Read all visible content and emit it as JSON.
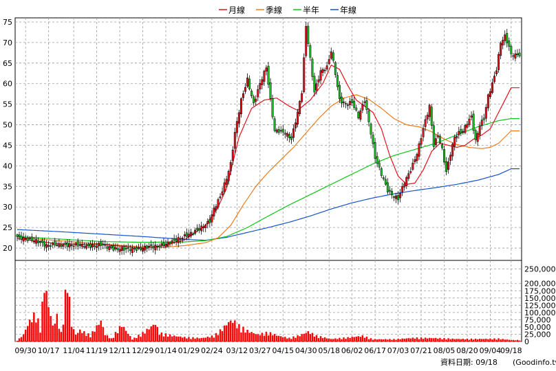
{
  "chart_data": {
    "type": "candlestick",
    "title": "",
    "legend": {
      "placement": "top-center",
      "entries": [
        {
          "name": "月線",
          "color": "#e8101b"
        },
        {
          "name": "季線",
          "color": "#ef7a1a"
        },
        {
          "name": "半年",
          "color": "#11c51c"
        },
        {
          "name": "年線",
          "color": "#1451cf"
        }
      ]
    },
    "price_axis": {
      "ylim": [
        17,
        76
      ],
      "ticks": [
        20,
        25,
        30,
        35,
        40,
        45,
        50,
        55,
        60,
        65,
        70,
        75
      ]
    },
    "volume_axis": {
      "ylim": [
        0,
        280000
      ],
      "ticks": [
        0,
        25000,
        50000,
        75000,
        100000,
        125000,
        150000,
        175000,
        200000,
        250000
      ],
      "tick_labels": [
        "0",
        "25,000",
        "50,000",
        "75,000",
        "100,000",
        "125,000",
        "150,000",
        "175,000",
        "200,000",
        "250,000"
      ]
    },
    "x_ticks": [
      {
        "label": "09/30",
        "day": 4
      },
      {
        "label": "10/17",
        "day": 15
      },
      {
        "label": "11/04",
        "day": 27
      },
      {
        "label": "11/19",
        "day": 38
      },
      {
        "label": "12/11",
        "day": 49
      },
      {
        "label": "12/29",
        "day": 60
      },
      {
        "label": "01/14",
        "day": 71
      },
      {
        "label": "01/29",
        "day": 82
      },
      {
        "label": "02/24",
        "day": 93
      },
      {
        "label": "03/12",
        "day": 105
      },
      {
        "label": "03/27",
        "day": 116
      },
      {
        "label": "04/15",
        "day": 127
      },
      {
        "label": "04/30",
        "day": 138
      },
      {
        "label": "05/18",
        "day": 149
      },
      {
        "label": "06/02",
        "day": 160
      },
      {
        "label": "06/17",
        "day": 171
      },
      {
        "label": "07/03",
        "day": 182
      },
      {
        "label": "07/21",
        "day": 193
      },
      {
        "label": "08/05",
        "day": 204
      },
      {
        "label": "08/20",
        "day": 215
      },
      {
        "label": "09/04",
        "day": 226
      },
      {
        "label": "09/18",
        "day": 236
      }
    ],
    "grid": true,
    "days": 241,
    "close_anchors": [
      [
        0,
        22.8
      ],
      [
        6,
        22
      ],
      [
        10,
        21.6
      ],
      [
        14,
        20.6
      ],
      [
        18,
        20.9
      ],
      [
        22,
        20.7
      ],
      [
        28,
        20.8
      ],
      [
        34,
        20.4
      ],
      [
        40,
        20.9
      ],
      [
        46,
        19.8
      ],
      [
        52,
        19.8
      ],
      [
        58,
        19.7
      ],
      [
        62,
        20.3
      ],
      [
        68,
        20.5
      ],
      [
        72,
        21.2
      ],
      [
        76,
        22.0
      ],
      [
        80,
        22.9
      ],
      [
        84,
        23.8
      ],
      [
        88,
        25.0
      ],
      [
        92,
        26.5
      ],
      [
        94,
        29.5
      ],
      [
        97,
        32.5
      ],
      [
        100,
        37.0
      ],
      [
        102,
        40.5
      ],
      [
        104,
        48.0
      ],
      [
        107,
        56.0
      ],
      [
        110,
        61.0
      ],
      [
        113,
        55.0
      ],
      [
        116,
        60.0
      ],
      [
        119,
        64.0
      ],
      [
        121,
        56.0
      ],
      [
        123,
        48.5
      ],
      [
        125,
        48.5
      ],
      [
        128,
        48.0
      ],
      [
        131,
        46.5
      ],
      [
        134,
        53.0
      ],
      [
        136,
        58.0
      ],
      [
        138,
        74.0
      ],
      [
        140,
        66.0
      ],
      [
        142,
        58.0
      ],
      [
        145,
        63.0
      ],
      [
        148,
        64.0
      ],
      [
        150,
        68.0
      ],
      [
        152,
        62.5
      ],
      [
        154,
        56.0
      ],
      [
        157,
        55.0
      ],
      [
        160,
        55.5
      ],
      [
        163,
        52.0
      ],
      [
        166,
        56.0
      ],
      [
        169,
        48.0
      ],
      [
        171,
        42.0
      ],
      [
        174,
        38.0
      ],
      [
        177,
        34.0
      ],
      [
        179,
        33.0
      ],
      [
        182,
        32.0
      ],
      [
        185,
        36.0
      ],
      [
        188,
        39.0
      ],
      [
        191,
        43.0
      ],
      [
        193,
        47.0
      ],
      [
        195,
        51.0
      ],
      [
        197,
        54.5
      ],
      [
        199,
        45.0
      ],
      [
        201,
        47.5
      ],
      [
        203,
        44.0
      ],
      [
        205,
        38.5
      ],
      [
        207,
        43.0
      ],
      [
        209,
        47.0
      ],
      [
        211,
        48.0
      ],
      [
        213,
        48.5
      ],
      [
        215,
        50.5
      ],
      [
        217,
        52.0
      ],
      [
        219,
        46.0
      ],
      [
        221,
        50.0
      ],
      [
        223,
        51.5
      ],
      [
        225,
        57.0
      ],
      [
        227,
        60.0
      ],
      [
        229,
        63.5
      ],
      [
        231,
        70.0
      ],
      [
        233,
        71.5
      ],
      [
        235,
        69.0
      ],
      [
        236,
        67.0
      ]
    ],
    "ma20_anchors": [
      [
        0,
        22.3
      ],
      [
        20,
        21.0
      ],
      [
        40,
        20.9
      ],
      [
        60,
        20.0
      ],
      [
        70,
        20.6
      ],
      [
        80,
        22.0
      ],
      [
        90,
        25.5
      ],
      [
        96,
        30.0
      ],
      [
        100,
        34.5
      ],
      [
        106,
        47.0
      ],
      [
        112,
        54.0
      ],
      [
        118,
        56.0
      ],
      [
        124,
        56.5
      ],
      [
        130,
        54.5
      ],
      [
        134,
        53.5
      ],
      [
        140,
        56.0
      ],
      [
        146,
        60.0
      ],
      [
        150,
        64.5
      ],
      [
        154,
        63.5
      ],
      [
        158,
        59.5
      ],
      [
        162,
        56.0
      ],
      [
        166,
        54.5
      ],
      [
        170,
        53.0
      ],
      [
        174,
        49.0
      ],
      [
        178,
        42.5
      ],
      [
        182,
        37.5
      ],
      [
        186,
        35.5
      ],
      [
        190,
        35.8
      ],
      [
        194,
        39.0
      ],
      [
        198,
        43.5
      ],
      [
        202,
        45.5
      ],
      [
        206,
        45.0
      ],
      [
        210,
        44.5
      ],
      [
        214,
        45.0
      ],
      [
        218,
        46.5
      ],
      [
        222,
        47.5
      ],
      [
        226,
        49.0
      ],
      [
        230,
        53.0
      ],
      [
        236,
        59.0
      ]
    ],
    "ma60_anchors": [
      [
        0,
        22.6
      ],
      [
        20,
        21.8
      ],
      [
        40,
        21.0
      ],
      [
        60,
        20.3
      ],
      [
        70,
        20.2
      ],
      [
        80,
        20.6
      ],
      [
        90,
        21.3
      ],
      [
        96,
        22.5
      ],
      [
        102,
        25.5
      ],
      [
        108,
        30.5
      ],
      [
        114,
        35.0
      ],
      [
        120,
        38.5
      ],
      [
        126,
        41.5
      ],
      [
        132,
        44.5
      ],
      [
        138,
        48.0
      ],
      [
        144,
        51.5
      ],
      [
        150,
        54.5
      ],
      [
        156,
        56.5
      ],
      [
        162,
        57.3
      ],
      [
        168,
        56.2
      ],
      [
        174,
        54.0
      ],
      [
        180,
        51.5
      ],
      [
        186,
        50.0
      ],
      [
        192,
        49.5
      ],
      [
        198,
        48.3
      ],
      [
        204,
        46.5
      ],
      [
        210,
        45.2
      ],
      [
        216,
        44.5
      ],
      [
        222,
        44.2
      ],
      [
        226,
        44.5
      ],
      [
        230,
        45.5
      ],
      [
        236,
        48.5
      ]
    ],
    "ma120_anchors": [
      [
        0,
        22.8
      ],
      [
        20,
        22.2
      ],
      [
        40,
        21.6
      ],
      [
        60,
        21.4
      ],
      [
        80,
        21.5
      ],
      [
        90,
        21.8
      ],
      [
        100,
        22.8
      ],
      [
        110,
        25.0
      ],
      [
        120,
        27.8
      ],
      [
        130,
        30.5
      ],
      [
        140,
        33.0
      ],
      [
        150,
        35.5
      ],
      [
        160,
        38.0
      ],
      [
        170,
        40.5
      ],
      [
        180,
        42.5
      ],
      [
        190,
        44.0
      ],
      [
        200,
        45.5
      ],
      [
        210,
        47.5
      ],
      [
        220,
        49.5
      ],
      [
        230,
        51.0
      ],
      [
        236,
        51.5
      ]
    ],
    "ma240_anchors": [
      [
        0,
        24.5
      ],
      [
        20,
        24.0
      ],
      [
        40,
        23.4
      ],
      [
        60,
        22.8
      ],
      [
        80,
        22.1
      ],
      [
        90,
        21.9
      ],
      [
        100,
        22.6
      ],
      [
        110,
        23.8
      ],
      [
        120,
        25.0
      ],
      [
        130,
        26.3
      ],
      [
        140,
        27.8
      ],
      [
        150,
        29.5
      ],
      [
        160,
        31.0
      ],
      [
        170,
        32.2
      ],
      [
        180,
        33.2
      ],
      [
        190,
        34.0
      ],
      [
        200,
        34.7
      ],
      [
        210,
        35.5
      ],
      [
        220,
        36.5
      ],
      [
        230,
        37.9
      ],
      [
        236,
        39.3
      ]
    ],
    "volume_anchors": [
      [
        0,
        3000
      ],
      [
        3,
        25000
      ],
      [
        5,
        60000
      ],
      [
        7,
        85000
      ],
      [
        9,
        100000
      ],
      [
        11,
        45000
      ],
      [
        13,
        210000
      ],
      [
        15,
        130000
      ],
      [
        17,
        55000
      ],
      [
        19,
        90000
      ],
      [
        21,
        30000
      ],
      [
        24,
        230000
      ],
      [
        26,
        60000
      ],
      [
        28,
        25000
      ],
      [
        30,
        40000
      ],
      [
        35,
        22000
      ],
      [
        40,
        75000
      ],
      [
        42,
        25000
      ],
      [
        45,
        10000
      ],
      [
        50,
        60000
      ],
      [
        55,
        8000
      ],
      [
        60,
        30000
      ],
      [
        66,
        65000
      ],
      [
        68,
        30000
      ],
      [
        75,
        20000
      ],
      [
        80,
        15000
      ],
      [
        88,
        12000
      ],
      [
        94,
        20000
      ],
      [
        98,
        45000
      ],
      [
        101,
        70000
      ],
      [
        103,
        75000
      ],
      [
        106,
        55000
      ],
      [
        110,
        38000
      ],
      [
        115,
        25000
      ],
      [
        120,
        32000
      ],
      [
        125,
        20000
      ],
      [
        130,
        12000
      ],
      [
        135,
        22000
      ],
      [
        139,
        35000
      ],
      [
        143,
        20000
      ],
      [
        150,
        9000
      ],
      [
        158,
        14000
      ],
      [
        165,
        20000
      ],
      [
        170,
        8000
      ],
      [
        180,
        8000
      ],
      [
        190,
        13000
      ],
      [
        200,
        12000
      ],
      [
        210,
        9000
      ],
      [
        220,
        9000
      ],
      [
        230,
        10000
      ],
      [
        236,
        5000
      ]
    ]
  },
  "footer": {
    "label": "資料日期: 09/18",
    "source": "(Goodinfo.tw)"
  },
  "colors": {
    "up": "#e8101b",
    "down": "#11c51c",
    "volume": "#ff0000",
    "grid": "#9a9a9a"
  }
}
